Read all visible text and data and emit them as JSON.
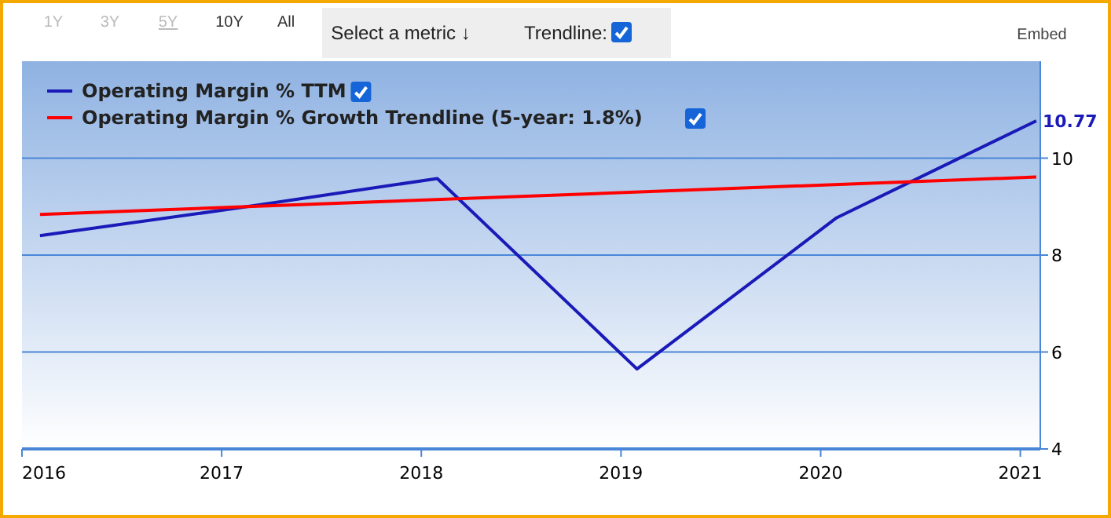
{
  "chart_data": {
    "type": "line",
    "annotations": [
      "1Y",
      "3Y",
      "5Y",
      "10Y",
      "All",
      "Select a metric ↓",
      "Trendline:",
      "Embed"
    ],
    "xlim": [
      2016,
      2021.1
    ],
    "xticks": [
      2016,
      2017,
      2018,
      2019,
      2020,
      2021
    ],
    "ylim": [
      4,
      12
    ],
    "yticks": [
      4,
      6,
      8,
      10
    ],
    "grid": "y",
    "legend": "top left",
    "marker": "none",
    "line_style": "solid",
    "series": [
      {
        "name": "Operating Margin % TTM",
        "color": "#1a1ab8",
        "x": [
          2016.09,
          2017.08,
          2018.08,
          2019.08,
          2020.08,
          2021.08
        ],
        "values": [
          8.4,
          8.97,
          9.58,
          5.65,
          8.77,
          10.77
        ],
        "value_labels": [
          null,
          null,
          null,
          null,
          null,
          "10.77"
        ]
      },
      {
        "name": "Operating Margin % Growth Trendline (5-year: 1.8%)",
        "color": "#ff0000",
        "x": [
          2016.09,
          2021.08
        ],
        "values": [
          8.84,
          9.61
        ]
      }
    ]
  }
}
